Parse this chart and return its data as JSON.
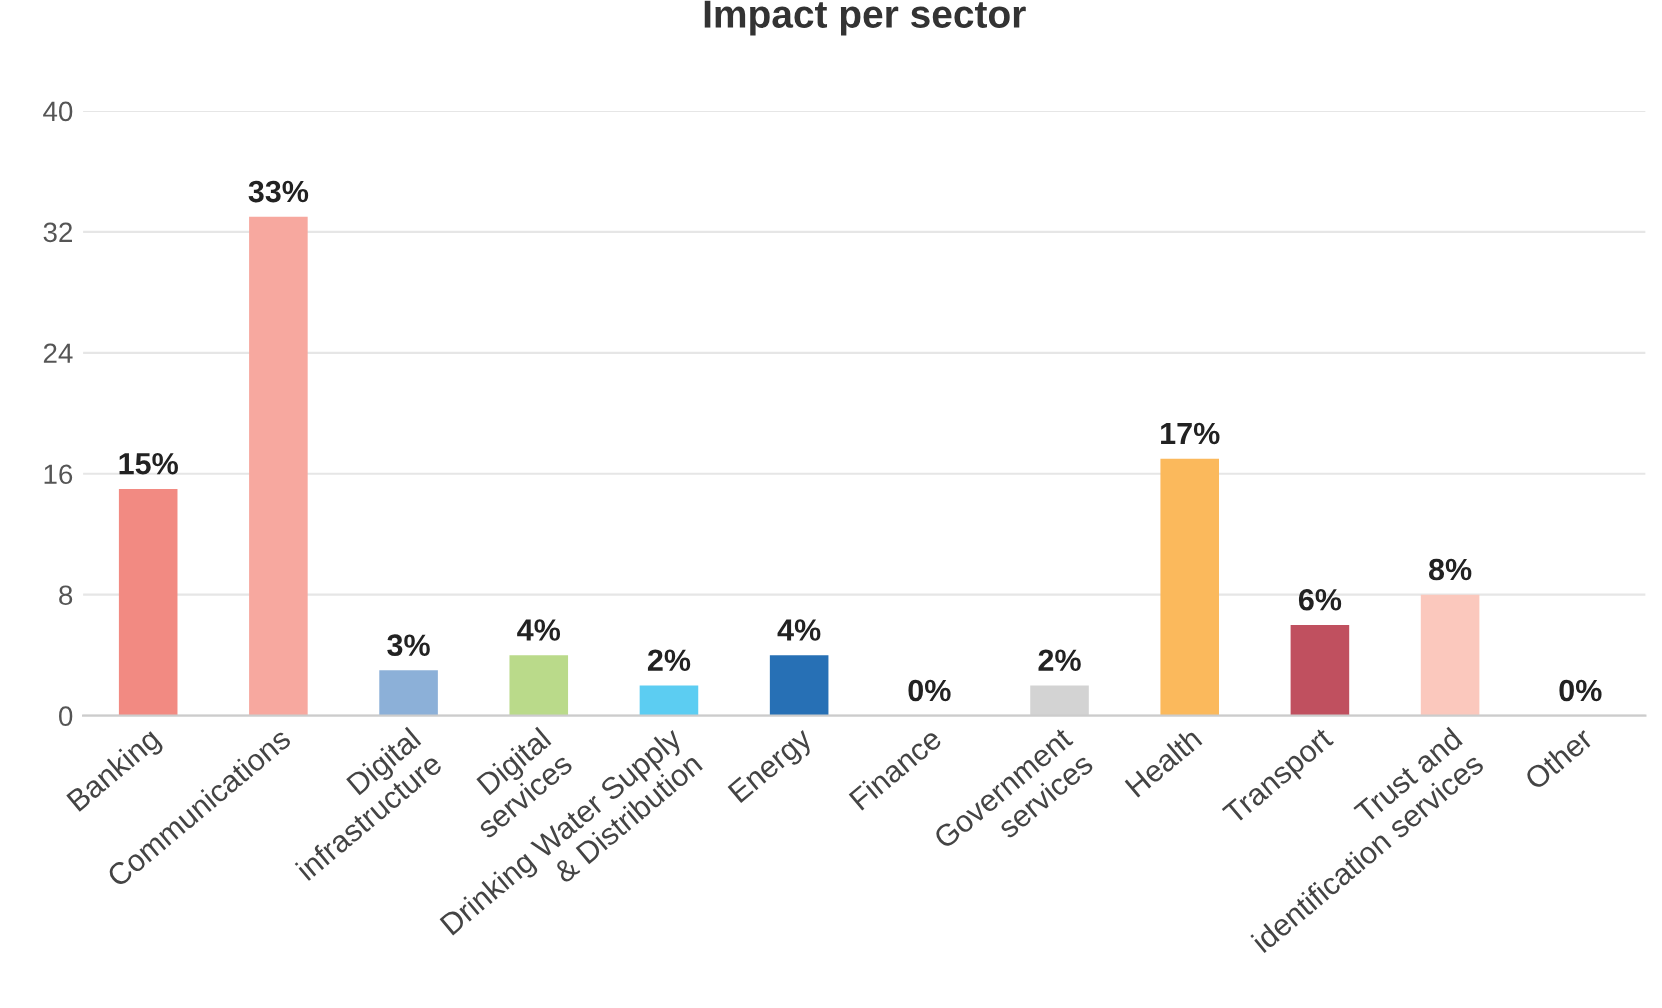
{
  "chart_data": {
    "type": "bar",
    "title": "Impact per sector",
    "categories": [
      "Banking",
      "Communications",
      "Digital\ninfrastructure",
      "Digital\nservices",
      "Drinking Water Supply\n& Distribution",
      "Energy",
      "Finance",
      "Government\nservices",
      "Health",
      "Transport",
      "Trust and\nidentification services",
      "Other"
    ],
    "values": [
      15,
      33,
      3,
      4,
      2,
      4,
      0,
      2,
      17,
      6,
      8,
      0
    ],
    "colors": [
      "#f28a82",
      "#f7a89f",
      "#8cb0d8",
      "#bada8a",
      "#5ccdf2",
      "#2770b5",
      "#b0b0b0",
      "#d3d3d3",
      "#fbb95c",
      "#c0505f",
      "#fbc8bd",
      "#b0b0b0"
    ],
    "value_labels": [
      "15%",
      "33%",
      "3%",
      "4%",
      "2%",
      "4%",
      "0%",
      "2%",
      "17%",
      "6%",
      "8%",
      "0%"
    ],
    "ylim": [
      0,
      40
    ],
    "yticks": [
      0,
      8,
      16,
      24,
      32,
      40
    ],
    "grid": "y",
    "legend": false
  }
}
